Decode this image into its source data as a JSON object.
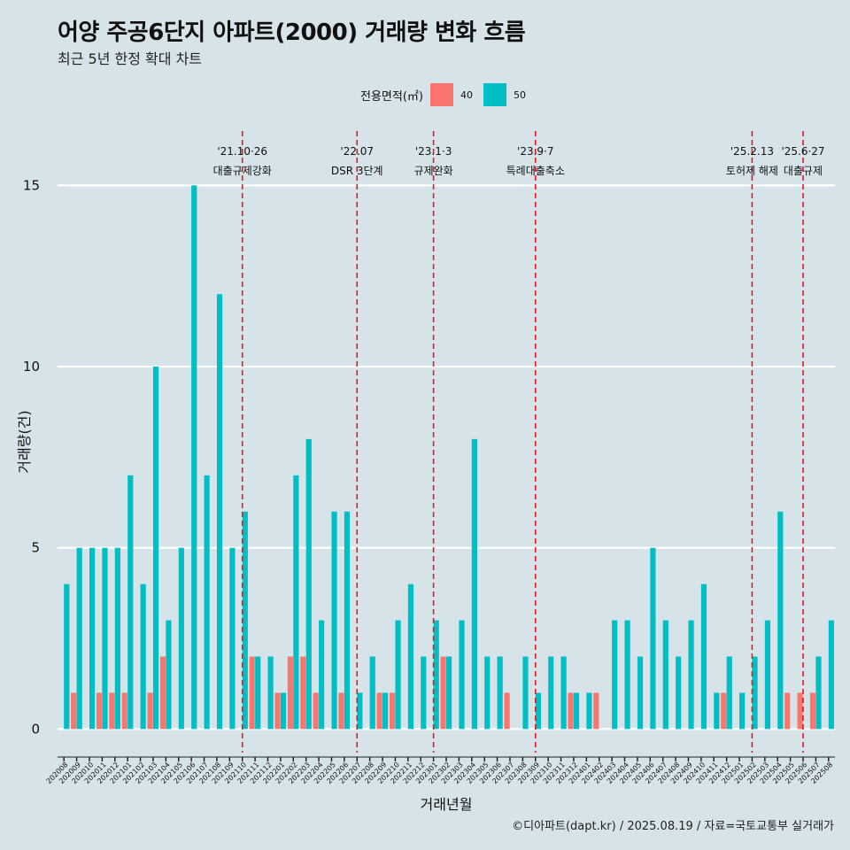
{
  "title": "어양 주공6단지 아파트(2000) 거래량 변화 흐름",
  "subtitle": "최근 5년 한정 확대 차트",
  "legend": {
    "title": "전용면적(㎡)",
    "items": [
      {
        "label": "40",
        "color": "#f8766d"
      },
      {
        "label": "50",
        "color": "#00bfc4"
      }
    ]
  },
  "caption": "©디아파트(dapt.kr) / 2025.08.19 / 자료=국토교통부 실거래가",
  "chart_data": {
    "type": "bar",
    "xlabel": "거래년월",
    "ylabel": "거래량(건)",
    "ylim": [
      0,
      16.5
    ],
    "yticks": [
      0,
      5,
      10,
      15
    ],
    "grid": true,
    "legend_position": "top",
    "categories": [
      "202008",
      "202009",
      "202010",
      "202011",
      "202012",
      "202101",
      "202102",
      "202103",
      "202104",
      "202105",
      "202106",
      "202107",
      "202108",
      "202109",
      "202110",
      "202111",
      "202112",
      "202201",
      "202202",
      "202203",
      "202204",
      "202205",
      "202206",
      "202207",
      "202208",
      "202209",
      "202210",
      "202211",
      "202212",
      "202301",
      "202302",
      "202303",
      "202304",
      "202305",
      "202306",
      "202307",
      "202308",
      "202309",
      "202310",
      "202311",
      "202312",
      "202401",
      "202402",
      "202403",
      "202404",
      "202405",
      "202406",
      "202407",
      "202408",
      "202409",
      "202410",
      "202411",
      "202412",
      "202501",
      "202502",
      "202503",
      "202504",
      "202505",
      "202506",
      "202507",
      "202508"
    ],
    "series": [
      {
        "name": "40",
        "color": "#f8766d",
        "values": [
          0,
          1,
          0,
          1,
          1,
          1,
          0,
          1,
          2,
          0,
          0,
          0,
          0,
          0,
          0,
          2,
          0,
          1,
          2,
          2,
          1,
          0,
          1,
          0,
          0,
          1,
          1,
          0,
          0,
          0,
          2,
          0,
          0,
          0,
          0,
          1,
          0,
          0,
          0,
          0,
          1,
          0,
          1,
          0,
          0,
          0,
          0,
          0,
          0,
          0,
          0,
          0,
          1,
          0,
          0,
          0,
          0,
          1,
          1,
          1,
          0
        ]
      },
      {
        "name": "50",
        "color": "#00bfc4",
        "values": [
          4,
          5,
          5,
          5,
          5,
          7,
          4,
          10,
          3,
          5,
          15,
          7,
          12,
          5,
          6,
          2,
          2,
          1,
          7,
          8,
          3,
          6,
          6,
          1,
          2,
          1,
          3,
          4,
          2,
          3,
          2,
          3,
          8,
          2,
          2,
          0,
          2,
          1,
          2,
          2,
          1,
          1,
          0,
          3,
          3,
          2,
          5,
          3,
          2,
          3,
          4,
          1,
          2,
          1,
          2,
          3,
          6,
          0,
          0,
          2,
          3
        ]
      }
    ],
    "annotations": [
      {
        "at": "202110",
        "date": "'21.10·26",
        "text": "대출규제강화"
      },
      {
        "at": "202207",
        "date": "'22.07",
        "text": "DSR 3단계"
      },
      {
        "at": "202301",
        "date": "'23.1·3",
        "text": "규제완화"
      },
      {
        "at": "202309",
        "date": "'23.9·7",
        "text": "특례대출축소"
      },
      {
        "at": "202502",
        "date": "'25.2.13",
        "text": "토허제 해제"
      },
      {
        "at": "202506",
        "date": "'25.6·27",
        "text": "대출규제"
      }
    ]
  }
}
